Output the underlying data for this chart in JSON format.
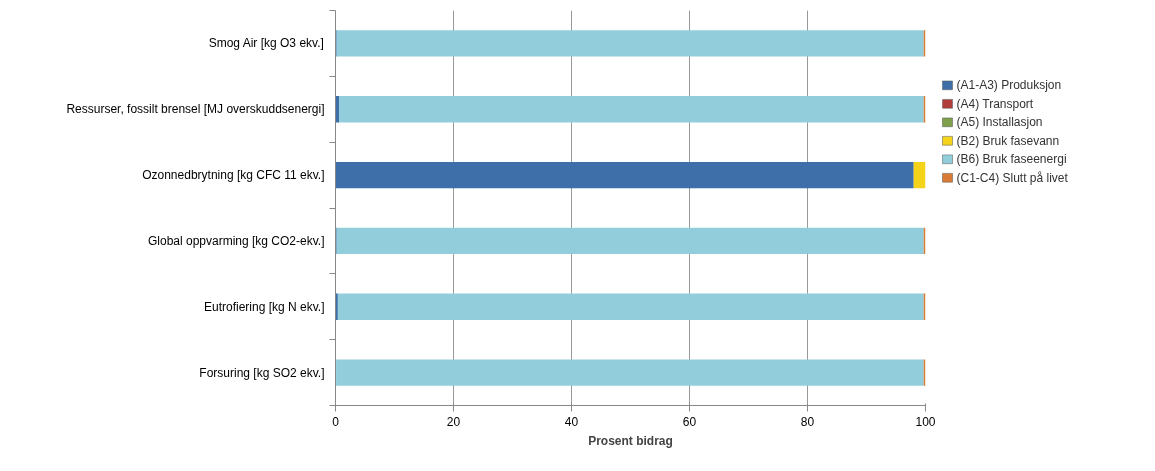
{
  "chart_data": {
    "type": "bar",
    "orientation": "horizontal",
    "stacked": true,
    "xlabel": "Prosent bidrag",
    "categories": [
      "Smog Air [kg O3 ekv.]",
      "Ressurser, fossilt brensel [MJ overskuddsenergi]",
      "Ozonnedbrytning [kg CFC 11 ekv.]",
      "Global oppvarming [kg CO2-ekv.]",
      "Eutrofiering [kg N ekv.]",
      "Forsuring [kg SO2 ekv.]"
    ],
    "series": [
      {
        "name": "(A1-A3) Produksjon",
        "color": "#3f6fa8",
        "values": [
          0.2,
          0.6,
          98,
          0.2,
          0.4,
          0.1
        ]
      },
      {
        "name": "(A4) Transport",
        "color": "#b13d3a",
        "values": [
          0,
          0,
          0,
          0,
          0,
          0
        ]
      },
      {
        "name": "(A5) Installasjon",
        "color": "#7ea04a",
        "values": [
          0,
          0,
          0,
          0,
          0,
          0
        ]
      },
      {
        "name": "(B2) Bruk fasevann",
        "color": "#f5d318",
        "values": [
          0,
          0,
          2,
          0,
          0,
          0
        ]
      },
      {
        "name": "(B6) Bruk faseenergi",
        "color": "#92cddc",
        "values": [
          99.5,
          99.1,
          0,
          99.5,
          99.3,
          99.6
        ]
      },
      {
        "name": "(C1-C4) Slutt på livet",
        "color": "#d97b35",
        "values": [
          0.3,
          0.3,
          0,
          0.3,
          0.3,
          0.3
        ]
      }
    ],
    "xlim": [
      0,
      100
    ],
    "xticks": [
      0,
      20,
      40,
      60,
      80,
      100
    ],
    "grid": "x",
    "legend": "right"
  }
}
